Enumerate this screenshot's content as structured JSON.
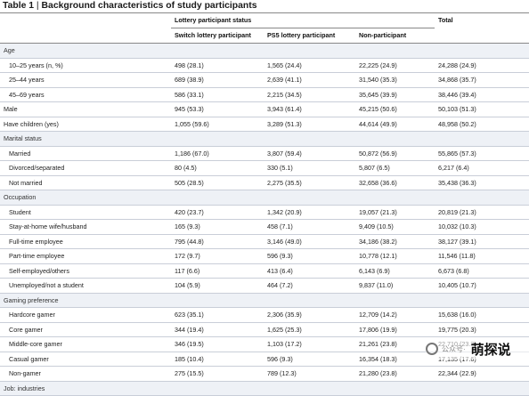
{
  "title": {
    "label": "Table 1",
    "separator": " | ",
    "text": "Background characteristics of study participants"
  },
  "header": {
    "group": "Lottery participant status",
    "total": "Total",
    "cols": [
      "Switch lottery participant",
      "PS5 lottery participant",
      "Non-participant"
    ]
  },
  "sections": [
    {
      "label": "Age",
      "rows": [
        {
          "label": "10–25 years (n, %)",
          "values": [
            "498 (28.1)",
            "1,565 (24.4)",
            "22,225 (24.9)",
            "24,288 (24.9)"
          ]
        },
        {
          "label": "25–44 years",
          "values": [
            "689 (38.9)",
            "2,639 (41.1)",
            "31,540 (35.3)",
            "34,868 (35.7)"
          ]
        },
        {
          "label": "45–69 years",
          "values": [
            "586 (33.1)",
            "2,215 (34.5)",
            "35,645 (39.9)",
            "38,446 (39.4)"
          ]
        }
      ]
    },
    {
      "label": "Male",
      "top": true,
      "values": [
        "945 (53.3)",
        "3,943 (61.4)",
        "45,215 (50.6)",
        "50,103 (51.3)"
      ]
    },
    {
      "label": "Have children (yes)",
      "top": true,
      "values": [
        "1,055 (59.6)",
        "3,289 (51.3)",
        "44,614 (49.9)",
        "48,958 (50.2)"
      ]
    },
    {
      "label": "Marital status",
      "rows": [
        {
          "label": "Married",
          "values": [
            "1,186 (67.0)",
            "3,807 (59.4)",
            "50,872 (56.9)",
            "55,865 (57.3)"
          ]
        },
        {
          "label": "Divorced/separated",
          "values": [
            "80 (4.5)",
            "330 (5.1)",
            "5,807 (6.5)",
            "6,217 (6.4)"
          ]
        },
        {
          "label": "Not married",
          "values": [
            "505 (28.5)",
            "2,275 (35.5)",
            "32,658 (36.6)",
            "35,438 (36.3)"
          ]
        }
      ]
    },
    {
      "label": "Occupation",
      "rows": [
        {
          "label": "Student",
          "values": [
            "420 (23.7)",
            "1,342 (20.9)",
            "19,057 (21.3)",
            "20,819 (21.3)"
          ]
        },
        {
          "label": "Stay-at-home wife/husband",
          "values": [
            "165 (9.3)",
            "458 (7.1)",
            "9,409 (10.5)",
            "10,032 (10.3)"
          ]
        },
        {
          "label": "Full-time employee",
          "values": [
            "795 (44.8)",
            "3,146 (49.0)",
            "34,186 (38.2)",
            "38,127 (39.1)"
          ]
        },
        {
          "label": "Part-time employee",
          "values": [
            "172 (9.7)",
            "596 (9.3)",
            "10,778 (12.1)",
            "11,546 (11.8)"
          ]
        },
        {
          "label": "Self-employed/others",
          "values": [
            "117 (6.6)",
            "413 (6.4)",
            "6,143 (6.9)",
            "6,673 (6.8)"
          ]
        },
        {
          "label": "Unemployed/not a student",
          "values": [
            "104 (5.9)",
            "464 (7.2)",
            "9,837 (11.0)",
            "10,405 (10.7)"
          ]
        }
      ]
    },
    {
      "label": "Gaming preference",
      "rows": [
        {
          "label": "Hardcore gamer",
          "values": [
            "623 (35.1)",
            "2,306 (35.9)",
            "12,709 (14.2)",
            "15,638 (16.0)"
          ]
        },
        {
          "label": "Core gamer",
          "values": [
            "344 (19.4)",
            "1,625 (25.3)",
            "17,806 (19.9)",
            "19,775 (20.3)"
          ]
        },
        {
          "label": "Middle-core gamer",
          "values": [
            "346 (19.5)",
            "1,103 (17.2)",
            "21,261 (23.8)",
            "22,710 (23.3)"
          ]
        },
        {
          "label": "Casual gamer",
          "values": [
            "185 (10.4)",
            "596 (9.3)",
            "16,354 (18.3)",
            "17,135 (17.6)"
          ]
        },
        {
          "label": "Non-gamer",
          "values": [
            "275 (15.5)",
            "789 (12.3)",
            "21,280 (23.8)",
            "22,344 (22.9)"
          ]
        }
      ]
    },
    {
      "label": "Job: industries",
      "rows": []
    }
  ],
  "watermark": {
    "text": "公众号·",
    "brand": "萌探说"
  }
}
